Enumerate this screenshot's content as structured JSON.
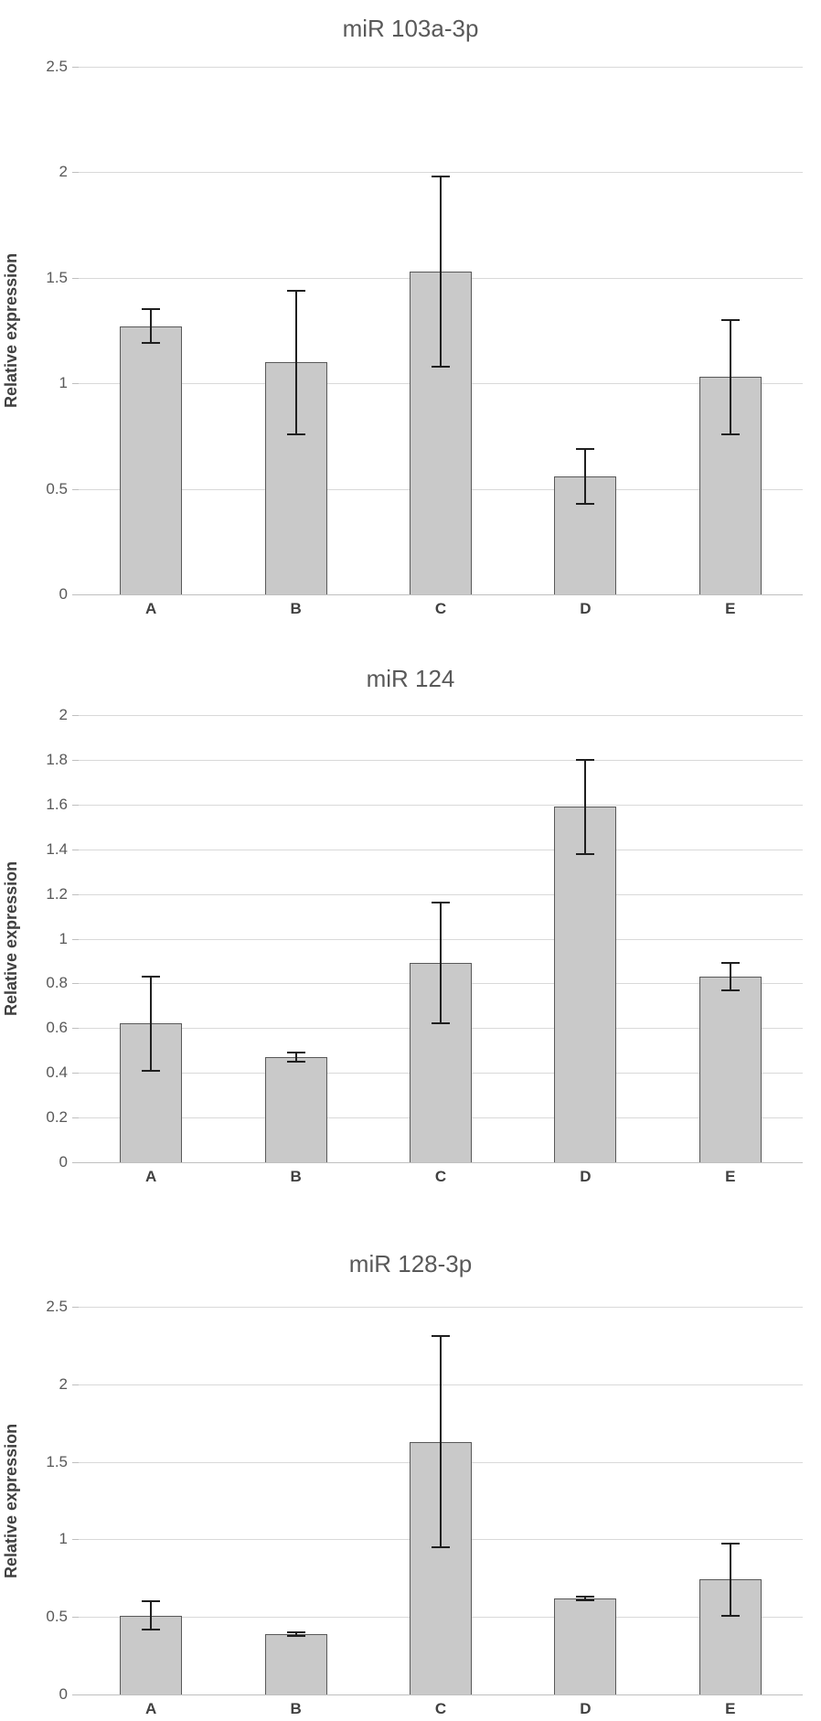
{
  "colors": {
    "bar_fill": "#c9c9c9",
    "bar_border": "#595959",
    "gridline": "#d9d9d9",
    "axis_line": "#bfbfbf",
    "error_bar": "#1f1f1f",
    "title_text": "#595959",
    "category_text": "#404040"
  },
  "chart_data": [
    {
      "type": "bar",
      "title": "miR 103a-3p",
      "xlabel": "",
      "ylabel": "Relative expression",
      "categories": [
        "A",
        "B",
        "C",
        "D",
        "E"
      ],
      "values": [
        1.27,
        1.1,
        1.53,
        0.56,
        1.03
      ],
      "errors": [
        0.08,
        0.34,
        0.45,
        0.13,
        0.27
      ],
      "ylim": [
        0,
        2.5
      ],
      "yticks": [
        "0",
        "0.5",
        "1",
        "1.5",
        "2",
        "2.5"
      ],
      "grid": true,
      "legend": "none"
    },
    {
      "type": "bar",
      "title": "miR 124",
      "xlabel": "",
      "ylabel": "Relative expression",
      "categories": [
        "A",
        "B",
        "C",
        "D",
        "E"
      ],
      "values": [
        0.62,
        0.47,
        0.89,
        1.59,
        0.83
      ],
      "errors": [
        0.21,
        0.02,
        0.27,
        0.21,
        0.06
      ],
      "ylim": [
        0,
        2
      ],
      "yticks": [
        "0",
        "0.2",
        "0.4",
        "0.6",
        "0.8",
        "1",
        "1.2",
        "1.4",
        "1.6",
        "1.8",
        "2"
      ],
      "grid": true,
      "legend": "none"
    },
    {
      "type": "bar",
      "title": "miR 128-3p",
      "xlabel": "",
      "ylabel": "Relative expression",
      "categories": [
        "A",
        "B",
        "C",
        "D",
        "E"
      ],
      "values": [
        0.51,
        0.39,
        1.63,
        0.62,
        0.74
      ],
      "errors": [
        0.09,
        0.01,
        0.68,
        0.01,
        0.23
      ],
      "ylim": [
        0,
        2.5
      ],
      "yticks": [
        "0",
        "0.5",
        "1",
        "1.5",
        "2",
        "2.5"
      ],
      "grid": true,
      "legend": "none"
    }
  ]
}
